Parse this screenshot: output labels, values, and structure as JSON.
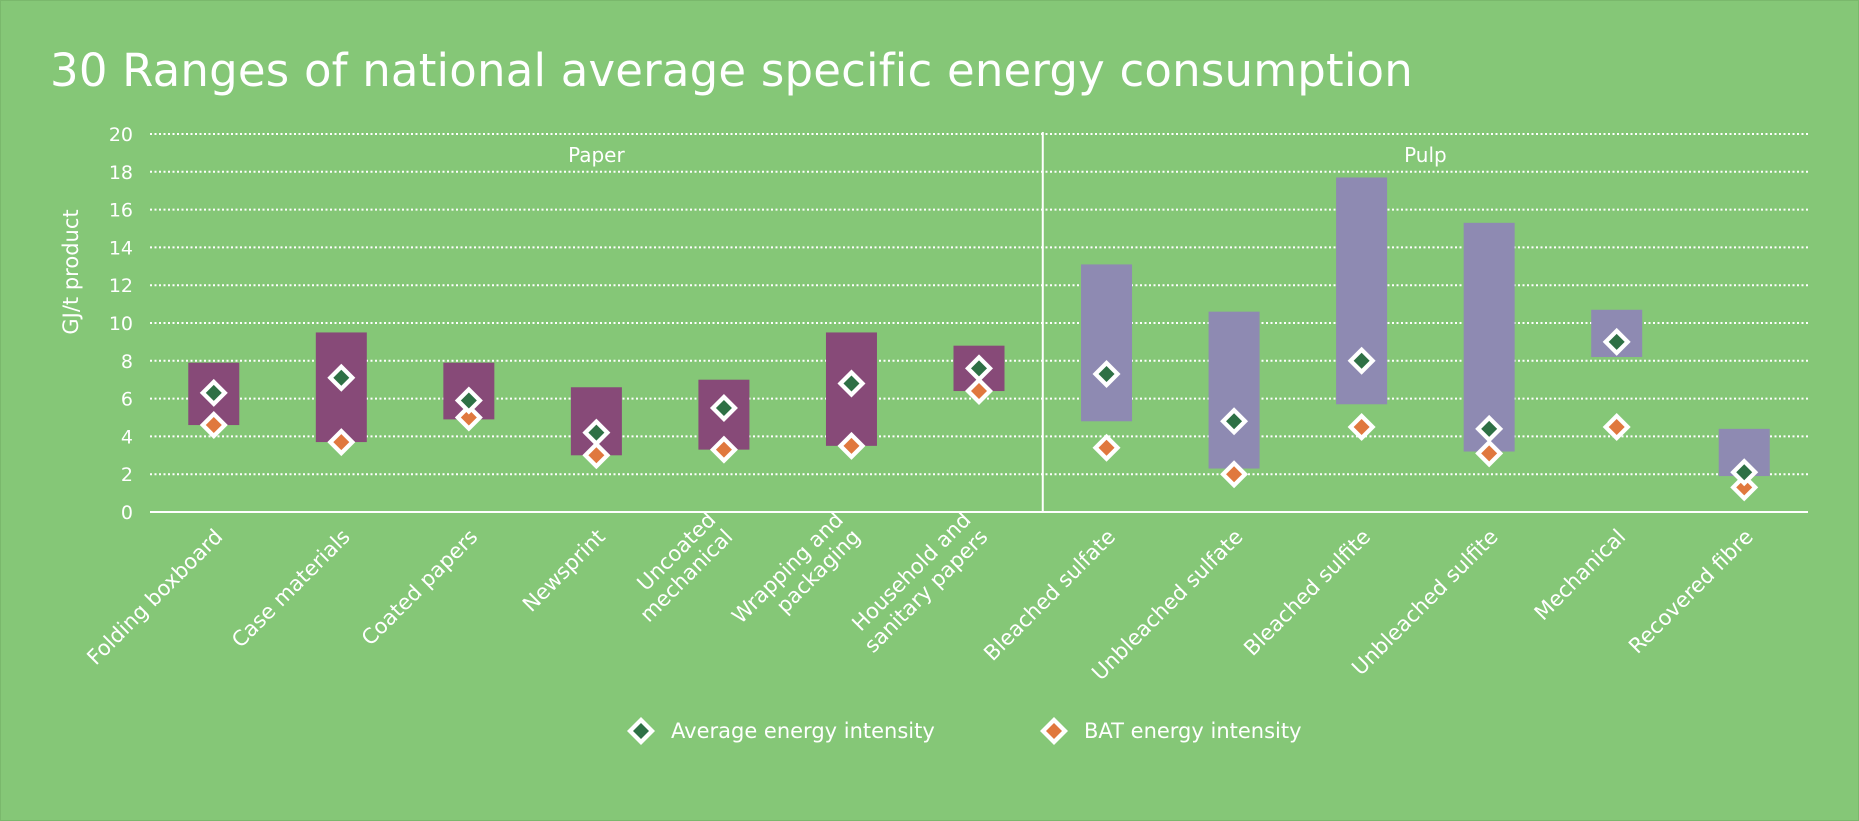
{
  "title": "30 Ranges of national average specific energy consumption",
  "chart_data": {
    "type": "range-and-markers",
    "ylabel": "GJ/t product",
    "ylim": [
      0,
      20
    ],
    "yticks": [
      "0",
      "2",
      "4",
      "6",
      "8",
      "10",
      "12",
      "14",
      "16",
      "18",
      "20"
    ],
    "grid": true,
    "groups": [
      {
        "name": "Paper",
        "categories": [
          "Folding boxboard",
          "Case materials",
          "Coated papers",
          "Newsprint",
          "Uncoated mechanical",
          "Wrapping and packaging",
          "Household and sanitary papers"
        ]
      },
      {
        "name": "Pulp",
        "categories": [
          "Bleached sulfate",
          "Unbleached sulfate",
          "Bleached sulfite",
          "Unbleached sulfite",
          "Mechanical",
          "Recovered fibre"
        ]
      }
    ],
    "category_lines": [
      [
        "Folding boxboard"
      ],
      [
        "Case materials"
      ],
      [
        "Coated papers"
      ],
      [
        "Newsprint"
      ],
      [
        "Uncoated",
        "mechanical"
      ],
      [
        "Wrapping and",
        "packaging"
      ],
      [
        "Household and",
        "sanitary papers"
      ],
      [
        "Bleached sulfate"
      ],
      [
        "Unbleached sulfate"
      ],
      [
        "Bleached sulfite"
      ],
      [
        "Unbleached sulfite"
      ],
      [
        "Mechanical"
      ],
      [
        "Recovered fibre"
      ]
    ],
    "ranges": [
      [
        4.6,
        7.9
      ],
      [
        3.7,
        9.5
      ],
      [
        4.9,
        7.9
      ],
      [
        3.0,
        6.6
      ],
      [
        3.3,
        7.0
      ],
      [
        3.5,
        9.5
      ],
      [
        6.4,
        8.8
      ],
      [
        4.8,
        13.1
      ],
      [
        2.3,
        10.6
      ],
      [
        5.7,
        17.7
      ],
      [
        3.2,
        15.3
      ],
      [
        8.2,
        10.7
      ],
      [
        1.9,
        4.4
      ]
    ],
    "range_colors": [
      "#874a78",
      "#874a78",
      "#874a78",
      "#874a78",
      "#874a78",
      "#874a78",
      "#874a78",
      "#8e8ab2",
      "#8e8ab2",
      "#8e8ab2",
      "#8e8ab2",
      "#8e8ab2",
      "#8e8ab2"
    ],
    "series": [
      {
        "name": "Average energy intensity",
        "color": "#2e7045",
        "values": [
          6.3,
          7.1,
          5.9,
          4.2,
          5.5,
          6.8,
          7.6,
          7.3,
          4.8,
          8.0,
          4.4,
          9.0,
          2.1
        ]
      },
      {
        "name": "BAT energy intensity",
        "color": "#e0783e",
        "values": [
          4.6,
          3.7,
          5.0,
          3.0,
          3.3,
          3.5,
          6.4,
          3.4,
          2.0,
          4.5,
          3.1,
          4.5,
          1.3
        ]
      }
    ],
    "legend_position": "bottom"
  }
}
